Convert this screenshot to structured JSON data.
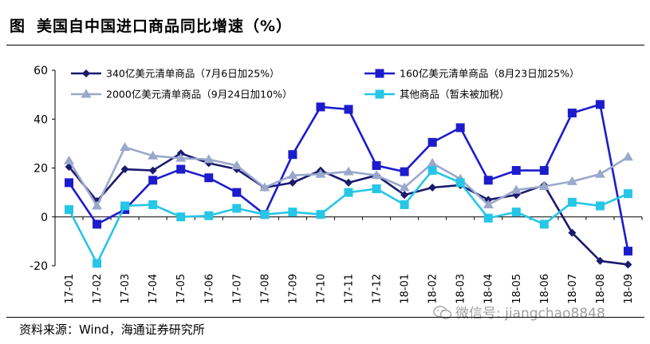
{
  "figure": {
    "label": "图",
    "title": "美国自中国进口商品同比增速（%）",
    "source": "资料来源：Wind，海通证券研究所",
    "watermark": "微信号: jiangchao8848"
  },
  "chart_data": {
    "type": "line",
    "x": [
      "17-01",
      "17-02",
      "17-03",
      "17-04",
      "17-05",
      "17-06",
      "17-07",
      "17-08",
      "17-09",
      "17-10",
      "17-11",
      "17-12",
      "18-01",
      "18-02",
      "18-03",
      "18-04",
      "18-05",
      "18-06",
      "18-07",
      "18-08",
      "18-09"
    ],
    "ylim": [
      -20,
      60
    ],
    "yticks": [
      -20,
      0,
      20,
      40,
      60
    ],
    "grid": false,
    "legend_placement": "top",
    "series": [
      {
        "name": "340亿美元清单商品（7月6日加25%）",
        "color": "#1a1a6e",
        "marker": "diamond",
        "values": [
          20.5,
          6.5,
          19.5,
          19,
          26,
          22,
          19.5,
          12,
          14,
          19,
          14,
          17,
          9,
          12,
          13,
          7,
          9,
          13,
          -6.5,
          -18,
          -19.5
        ]
      },
      {
        "name": "160亿美元清单商品（8月23日加25%）",
        "color": "#1c1ccc",
        "marker": "square",
        "values": [
          14,
          -3,
          3,
          15,
          19.5,
          16,
          10,
          1,
          25.5,
          45,
          44,
          21,
          18.5,
          30.5,
          36.5,
          15,
          19,
          19,
          42.5,
          46,
          -14
        ]
      },
      {
        "name": "2000亿美元清单商品（9月24日加10%）",
        "color": "#9aa8cc",
        "marker": "triangle",
        "values": [
          23,
          4.5,
          28.5,
          25,
          24,
          23.5,
          21,
          12,
          17,
          17.5,
          18.5,
          17,
          12,
          22,
          15.5,
          5,
          11,
          12.5,
          14.5,
          17.5,
          24.5
        ]
      },
      {
        "name": "其他商品（暂未被加税）",
        "color": "#26c6e6",
        "marker": "square",
        "values": [
          3,
          -19,
          4.5,
          5,
          0,
          0.5,
          3.5,
          1,
          2,
          1,
          10,
          11.5,
          5,
          19,
          14,
          -0.5,
          2,
          -3,
          6,
          4.5,
          9.5
        ]
      }
    ]
  }
}
